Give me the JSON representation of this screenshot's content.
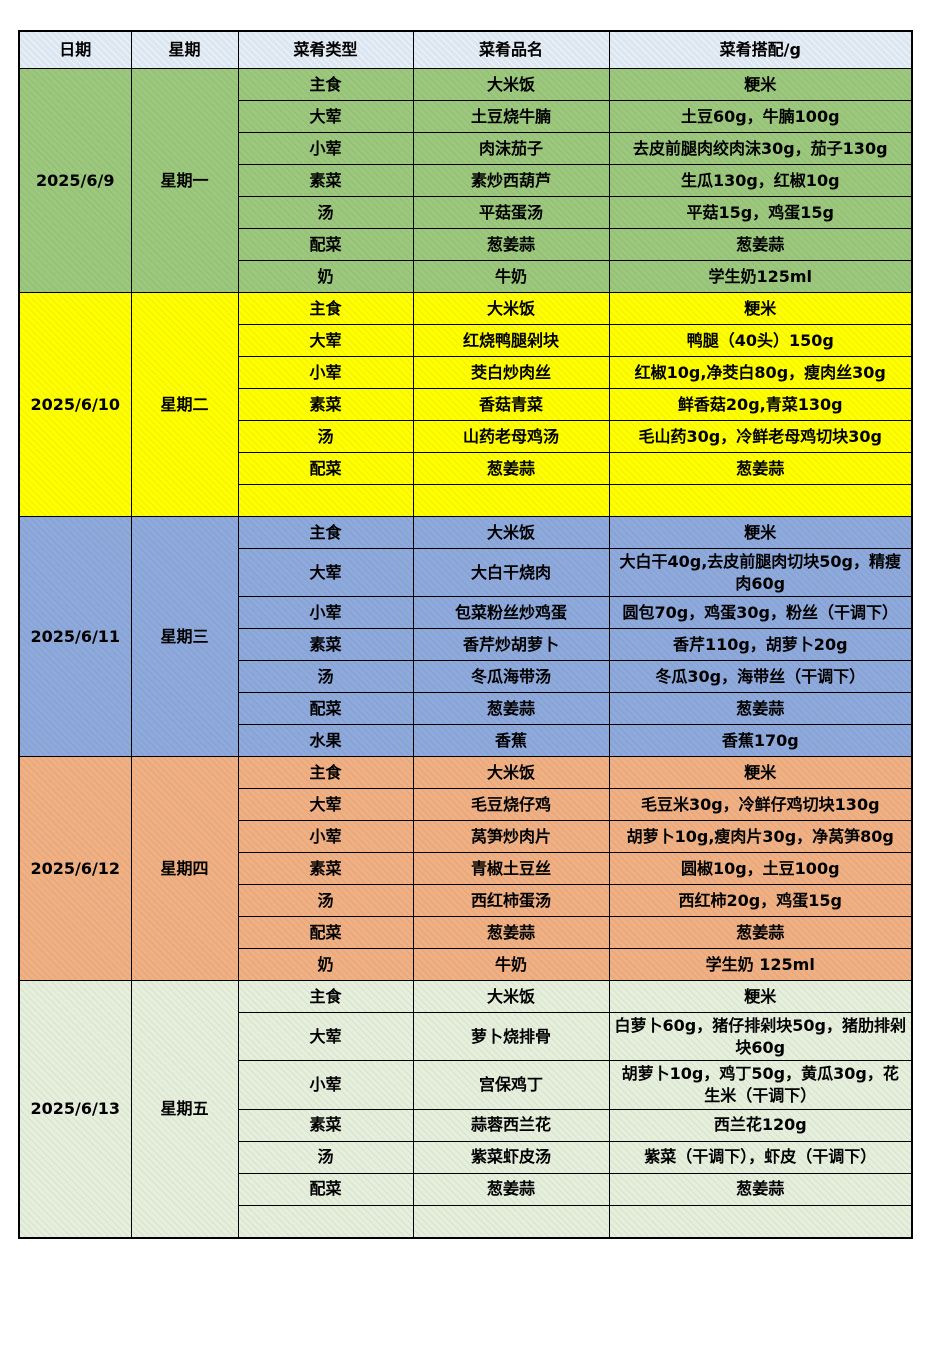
{
  "table": {
    "headers": {
      "date": "日期",
      "weekday": "星期",
      "type": "菜肴类型",
      "name": "菜肴品名",
      "combo": "菜肴搭配/g"
    }
  },
  "colors": {
    "header": "#dce6f1",
    "green": "#9cc87d",
    "yellow": "#ffff00",
    "blue": "#8ea9db",
    "orange": "#f0b083",
    "pale_green": "#e6efdc"
  },
  "days": [
    {
      "date": "2025/6/9",
      "weekday": "星期一",
      "color_key": "green",
      "rows": [
        {
          "type": "主食",
          "name": "大米饭",
          "combo": "粳米"
        },
        {
          "type": "大荤",
          "name": "土豆烧牛腩",
          "combo": "土豆60g，牛腩100g"
        },
        {
          "type": "小荤",
          "name": "肉沫茄子",
          "combo": "去皮前腿肉绞肉沫30g，茄子130g"
        },
        {
          "type": "素菜",
          "name": "素炒西葫芦",
          "combo": "生瓜130g，红椒10g"
        },
        {
          "type": "汤",
          "name": "平菇蛋汤",
          "combo": "平菇15g，鸡蛋15g"
        },
        {
          "type": "配菜",
          "name": "葱姜蒜",
          "combo": "葱姜蒜"
        },
        {
          "type": "奶",
          "name": "牛奶",
          "combo": "学生奶125ml"
        }
      ]
    },
    {
      "date": "2025/6/10",
      "weekday": "星期二",
      "color_key": "yellow",
      "rows": [
        {
          "type": "主食",
          "name": "大米饭",
          "combo": "粳米"
        },
        {
          "type": "大荤",
          "name": "红烧鸭腿剁块",
          "combo": "鸭腿（40头）150g"
        },
        {
          "type": "小荤",
          "name": "茭白炒肉丝",
          "combo": "红椒10g,净茭白80g，瘦肉丝30g"
        },
        {
          "type": "素菜",
          "name": "香菇青菜",
          "combo": "鲜香菇20g,青菜130g"
        },
        {
          "type": "汤",
          "name": "山药老母鸡汤",
          "combo": "毛山药30g，冷鲜老母鸡切块30g"
        },
        {
          "type": "配菜",
          "name": "葱姜蒜",
          "combo": "葱姜蒜"
        },
        {
          "type": "",
          "name": "",
          "combo": ""
        }
      ]
    },
    {
      "date": "2025/6/11",
      "weekday": "星期三",
      "color_key": "blue",
      "rows": [
        {
          "type": "主食",
          "name": "大米饭",
          "combo": "粳米"
        },
        {
          "type": "大荤",
          "name": "大白干烧肉",
          "combo": "大白干40g,去皮前腿肉切块50g，精瘦肉60g"
        },
        {
          "type": "小荤",
          "name": "包菜粉丝炒鸡蛋",
          "combo": "圆包70g，鸡蛋30g，粉丝（干调下）"
        },
        {
          "type": "素菜",
          "name": "香芹炒胡萝卜",
          "combo": "香芹110g，胡萝卜20g"
        },
        {
          "type": "汤",
          "name": "冬瓜海带汤",
          "combo": "冬瓜30g，海带丝（干调下）"
        },
        {
          "type": "配菜",
          "name": "葱姜蒜",
          "combo": "葱姜蒜"
        },
        {
          "type": "水果",
          "name": "香蕉",
          "combo": "香蕉170g"
        }
      ]
    },
    {
      "date": "2025/6/12",
      "weekday": "星期四",
      "color_key": "orange",
      "rows": [
        {
          "type": "主食",
          "name": "大米饭",
          "combo": "粳米"
        },
        {
          "type": "大荤",
          "name": "毛豆烧仔鸡",
          "combo": "毛豆米30g，冷鲜仔鸡切块130g"
        },
        {
          "type": "小荤",
          "name": "莴笋炒肉片",
          "combo": "胡萝卜10g,瘦肉片30g，净莴笋80g"
        },
        {
          "type": "素菜",
          "name": "青椒土豆丝",
          "combo": "圆椒10g，土豆100g"
        },
        {
          "type": "汤",
          "name": "西红柿蛋汤",
          "combo": "西红柿20g，鸡蛋15g"
        },
        {
          "type": "配菜",
          "name": "葱姜蒜",
          "combo": "葱姜蒜"
        },
        {
          "type": "奶",
          "name": "牛奶",
          "combo": "学生奶 125ml"
        }
      ]
    },
    {
      "date": "2025/6/13",
      "weekday": "星期五",
      "color_key": "pale_green",
      "rows": [
        {
          "type": "主食",
          "name": "大米饭",
          "combo": "粳米"
        },
        {
          "type": "大荤",
          "name": "萝卜烧排骨",
          "combo": "白萝卜60g，猪仔排剁块50g，猪肋排剁块60g"
        },
        {
          "type": "小荤",
          "name": "宫保鸡丁",
          "combo": "胡萝卜10g，鸡丁50g，黄瓜30g，花生米（干调下）"
        },
        {
          "type": "素菜",
          "name": "蒜蓉西兰花",
          "combo": "西兰花120g"
        },
        {
          "type": "汤",
          "name": "紫菜虾皮汤",
          "combo": "紫菜（干调下），虾皮（干调下）"
        },
        {
          "type": "配菜",
          "name": "葱姜蒜",
          "combo": "葱姜蒜"
        },
        {
          "type": "",
          "name": "",
          "combo": ""
        }
      ]
    }
  ]
}
